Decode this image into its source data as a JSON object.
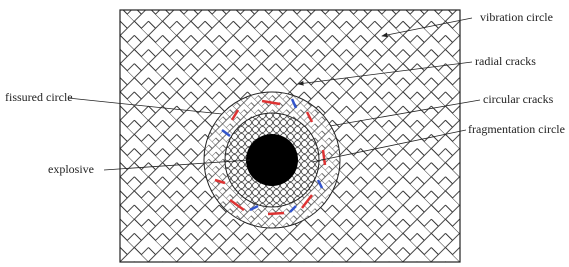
{
  "labels": [
    "vibration circle",
    "radial cracks",
    "fissured circle",
    "circular cracks",
    "fragmentation circle",
    "explosive"
  ]
}
